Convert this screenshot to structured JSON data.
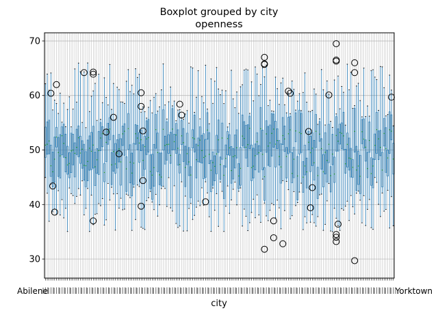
{
  "chart_data": {
    "type": "boxplot",
    "title": "Boxplot grouped by city",
    "subtitle": "openness",
    "xlabel": "city",
    "ylabel": "",
    "ylim": [
      26.5,
      71.5
    ],
    "yticks": [
      30,
      40,
      50,
      60,
      70
    ],
    "grid": true,
    "n_groups": 190,
    "x_edge_labels": {
      "left": "Abilene",
      "right": "Yorktown"
    },
    "colors": {
      "box": "#1f77b4",
      "median": "#2ca02c",
      "whisker": "#000000",
      "flier": "#000000",
      "grid": "#b0b0b0"
    },
    "distribution": {
      "center": 49.5,
      "q1_spread": 3.2,
      "q3_spread": 3.2,
      "whisker_low_range": [
        35,
        45
      ],
      "whisker_high_range": [
        54,
        66
      ]
    },
    "outliers": [
      {
        "group": 3,
        "value": 60.4
      },
      {
        "group": 4,
        "value": 43.4
      },
      {
        "group": 5,
        "value": 38.6
      },
      {
        "group": 6,
        "value": 62.0
      },
      {
        "group": 21,
        "value": 64.2
      },
      {
        "group": 26,
        "value": 64.3
      },
      {
        "group": 26,
        "value": 63.9
      },
      {
        "group": 26,
        "value": 37.0
      },
      {
        "group": 33,
        "value": 53.3
      },
      {
        "group": 37,
        "value": 56.0
      },
      {
        "group": 40,
        "value": 49.3
      },
      {
        "group": 52,
        "value": 60.5
      },
      {
        "group": 52,
        "value": 58.0
      },
      {
        "group": 53,
        "value": 53.5
      },
      {
        "group": 53,
        "value": 44.4
      },
      {
        "group": 52,
        "value": 39.7
      },
      {
        "group": 73,
        "value": 58.4
      },
      {
        "group": 74,
        "value": 56.4
      },
      {
        "group": 87,
        "value": 40.5
      },
      {
        "group": 119,
        "value": 67.0
      },
      {
        "group": 119,
        "value": 65.8
      },
      {
        "group": 119,
        "value": 65.7
      },
      {
        "group": 119,
        "value": 31.8
      },
      {
        "group": 124,
        "value": 37.0
      },
      {
        "group": 124,
        "value": 33.9
      },
      {
        "group": 129,
        "value": 32.8
      },
      {
        "group": 132,
        "value": 60.8
      },
      {
        "group": 133,
        "value": 60.4
      },
      {
        "group": 143,
        "value": 53.4
      },
      {
        "group": 144,
        "value": 39.4
      },
      {
        "group": 145,
        "value": 43.1
      },
      {
        "group": 154,
        "value": 60.1
      },
      {
        "group": 158,
        "value": 69.5
      },
      {
        "group": 158,
        "value": 66.5
      },
      {
        "group": 158,
        "value": 66.3
      },
      {
        "group": 159,
        "value": 36.4
      },
      {
        "group": 158,
        "value": 34.5
      },
      {
        "group": 158,
        "value": 34.0
      },
      {
        "group": 158,
        "value": 33.2
      },
      {
        "group": 168,
        "value": 66.0
      },
      {
        "group": 168,
        "value": 64.2
      },
      {
        "group": 168,
        "value": 29.7
      },
      {
        "group": 188,
        "value": 59.7
      }
    ]
  }
}
